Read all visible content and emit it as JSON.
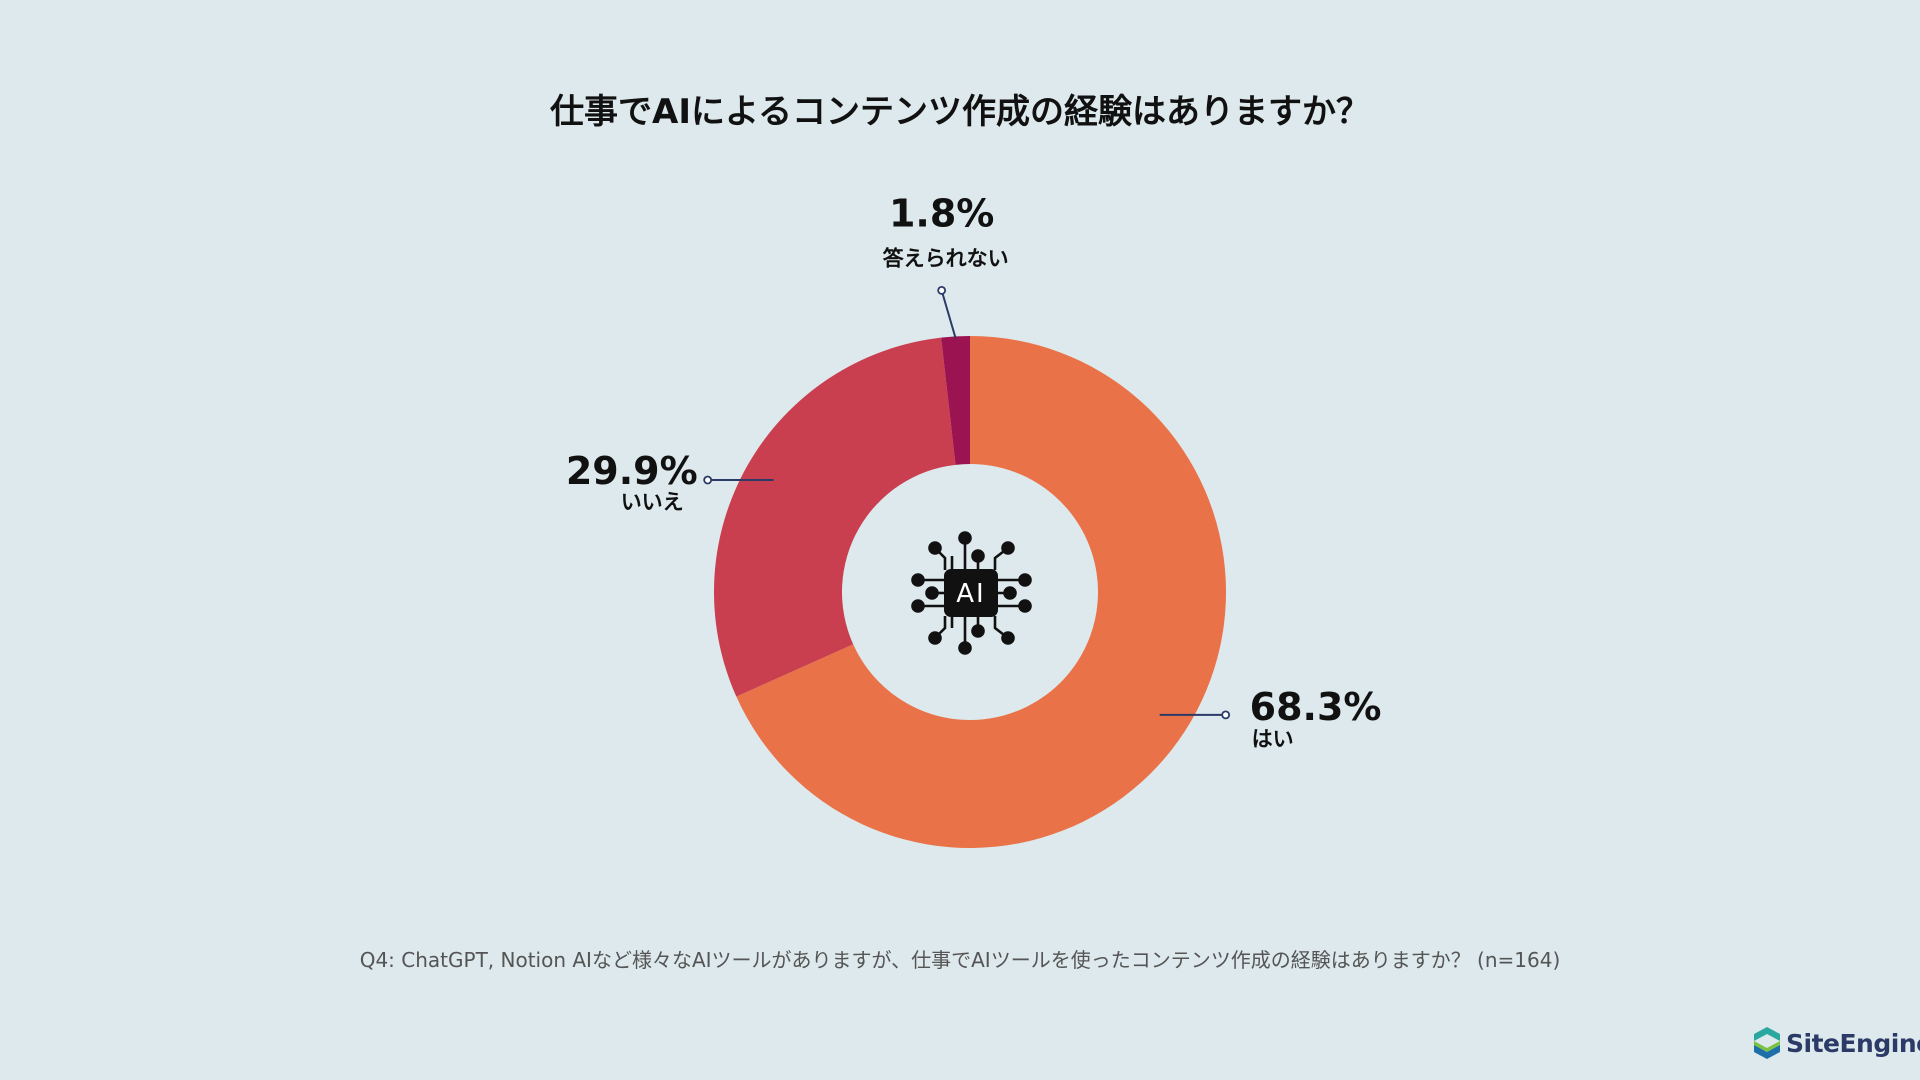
{
  "title": "仕事でAIによるコンテンツ作成の経験はありますか？",
  "footnote": "Q4: ChatGPT, Notion AIなど様々なAIツールがありますが、仕事でAIツールを使ったコンテンツ作成の経験はありますか？ (n=164)",
  "center_icon": {
    "icon": "ai-chip-icon",
    "label": "AI"
  },
  "brand": {
    "name": "SiteEngine",
    "icon": "site-engine-logo-icon"
  },
  "chart_data": {
    "type": "pie",
    "donut": true,
    "start": "top, clockwise",
    "slices": [
      {
        "label": "はい",
        "value": 68.3,
        "value_label": "68.3%",
        "color": "#ea7248"
      },
      {
        "label": "いいえ",
        "value": 29.9,
        "value_label": "29.9%",
        "color": "#c93f50"
      },
      {
        "label": "答えられない",
        "value": 1.8,
        "value_label": "1.8%",
        "color": "#9c1351"
      }
    ],
    "leader_line_color": "#2b3a67"
  }
}
